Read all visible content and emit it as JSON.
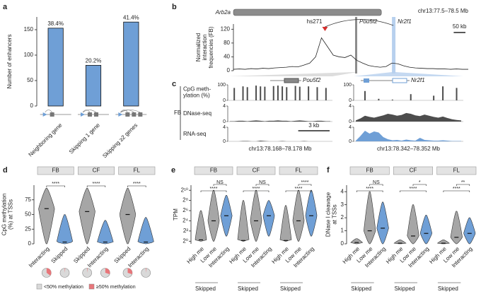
{
  "chart_data": [
    {
      "type": "bar",
      "panel": "a",
      "ylabel": [
        "Number of enhancers"
      ],
      "categories": [
        "Neighboring gene",
        "Skipping 1 gene",
        "Skipping ≥2 genes"
      ],
      "values": [
        153,
        80,
        165
      ],
      "annotations": [
        "38.4%",
        "20.2%",
        "41.4%"
      ],
      "color": "#6f9fd6",
      "ylim": [
        0,
        175
      ],
      "yticks": [
        0,
        50,
        100,
        150
      ]
    },
    {
      "type": "line",
      "panel": "b",
      "title": "chr13:77.5–78.5 Mb",
      "ylabel": [
        "Normalized",
        "interaction",
        "frequencies (FB)"
      ],
      "x": [
        77.5,
        77.525,
        77.55,
        77.575,
        77.6,
        77.625,
        77.65,
        77.675,
        77.7,
        77.725,
        77.75,
        77.775,
        77.8,
        77.825,
        77.85,
        77.875,
        77.9,
        77.925,
        77.95,
        77.975,
        78.0,
        78.025,
        78.05,
        78.075,
        78.1,
        78.125,
        78.15,
        78.175,
        78.2,
        78.225,
        78.25,
        78.275,
        78.3,
        78.325,
        78.35,
        78.375,
        78.4,
        78.425,
        78.45,
        78.475,
        78.5
      ],
      "values": [
        4,
        5,
        4,
        6,
        5,
        7,
        6,
        8,
        9,
        10,
        12,
        11,
        16,
        22,
        40,
        95,
        70,
        45,
        40,
        38,
        45,
        30,
        22,
        15,
        12,
        10,
        12,
        22,
        20,
        14,
        10,
        8,
        7,
        6,
        6,
        5,
        5,
        4,
        5,
        4,
        4
      ],
      "color": "#222222",
      "xlim": [
        77.5,
        78.5
      ],
      "ylim": [
        0,
        135
      ],
      "yticks": [
        0,
        40,
        80,
        120
      ],
      "genes": [
        {
          "name": "Arb2a",
          "start": 77.5,
          "end": 78.13,
          "color": "#8c8c8c"
        },
        {
          "name": "Pou5f2",
          "start": 78.018,
          "end": 78.024,
          "color": "#8c8c8c"
        },
        {
          "name": "Nr2f1",
          "start": 78.175,
          "end": 78.19,
          "color": "#b7d0ee"
        }
      ],
      "enhancer": {
        "name": "hs271",
        "position": 77.89
      },
      "scale_bar": {
        "label": "50 kb",
        "length": 0.05
      }
    },
    {
      "type": "tracks",
      "panel": "c",
      "group": "FB",
      "genes": [
        "Pou5f2",
        "Nr2f1"
      ],
      "regions": [
        {
          "label": "chr13:78.168–78.178 Mb",
          "xlim": [
            78.168,
            78.178
          ]
        },
        {
          "label": "chr13:78.342–78.352 Mb",
          "xlim": [
            78.342,
            78.352
          ]
        }
      ],
      "scale_bar": {
        "label": "3 kb",
        "length": 0.003
      },
      "tracks": [
        {
          "name": [
            "CpG meth-",
            "ylation (%)"
          ],
          "style": "bar",
          "ylim": [
            0,
            100
          ],
          "yticks": [
            0,
            100
          ],
          "colors": [
            "#4d4d4d",
            "#4d4d4d"
          ],
          "values": [
            [
              0,
              80,
              0,
              90,
              85,
              0,
              95,
              90,
              88,
              0,
              92,
              95,
              90,
              85,
              0,
              93,
              88,
              0,
              90,
              0,
              85,
              0,
              80,
              0
            ],
            [
              0,
              0,
              60,
              0,
              0,
              10,
              0,
              0,
              5,
              0,
              0,
              0,
              40,
              0,
              0,
              0,
              0,
              30,
              0,
              90,
              0,
              0,
              80,
              0
            ]
          ]
        },
        {
          "name": [
            "DNase-seq"
          ],
          "style": "area",
          "ylim": [
            0,
            4
          ],
          "yticks": [
            0,
            4
          ],
          "colors": [
            "#4d4d4d",
            "#4d4d4d"
          ],
          "values": [
            [
              0.1,
              0.1,
              0.2,
              0.2,
              0.1,
              0.2,
              0.3,
              0.2,
              0.1,
              0.2,
              0.2,
              0.3,
              0.2,
              0.2,
              0.1,
              0.2,
              0.3,
              0.2,
              0.1,
              0.1,
              0.2,
              0.2,
              0.1,
              0.1
            ],
            [
              0.3,
              0.8,
              1.5,
              1.2,
              1.0,
              1.3,
              1.6,
              2.0,
              1.8,
              1.5,
              1.7,
              2.2,
              2.0,
              1.6,
              1.4,
              1.8,
              1.5,
              1.2,
              1.0,
              1.3,
              0.9,
              0.6,
              0.4,
              0.3
            ]
          ]
        },
        {
          "name": [
            "RNA-seq"
          ],
          "style": "area",
          "ylim": [
            0,
            4
          ],
          "yticks": [
            0,
            4
          ],
          "colors": [
            "#4d4d4d",
            "#6f9fd6"
          ],
          "values": [
            [
              0,
              0,
              0,
              0.1,
              0.1,
              0,
              0,
              0.2,
              0.1,
              0,
              0,
              0,
              0.1,
              0,
              0,
              0,
              0,
              0.1,
              0,
              0,
              0,
              0,
              0,
              0
            ],
            [
              0.2,
              1.5,
              3.0,
              2.2,
              2.8,
              2.5,
              1.2,
              0.6,
              0.3,
              0.4,
              0.2,
              0.5,
              0.3,
              0.2,
              1.0,
              0.4,
              0.3,
              0.2,
              0.2,
              0.3,
              0.2,
              0.1,
              0.1,
              0.1
            ]
          ]
        }
      ]
    },
    {
      "type": "violin",
      "panel": "d",
      "ylabel": [
        "CpG methylation",
        "(%) at TSSs"
      ],
      "ylim": [
        0,
        100
      ],
      "yticks": [
        0,
        25,
        50,
        75
      ],
      "facets": [
        {
          "name": "FB",
          "categories": [
            "Interacting",
            "Skipped"
          ],
          "colors": [
            "#a6a6a6",
            "#6f9fd6"
          ],
          "stats": [
            [
              0,
              60,
              95
            ],
            [
              0,
              3,
              50
            ]
          ],
          "significance": [
            "****"
          ],
          "pies": [
            35,
            2
          ]
        },
        {
          "name": "CF",
          "categories": [
            "Skipped",
            "Interacting"
          ],
          "colors": [
            "#a6a6a6",
            "#6f9fd6"
          ],
          "stats": [
            [
              0,
              55,
              95
            ],
            [
              0,
              3,
              40
            ]
          ],
          "significance": [
            "****"
          ],
          "pies": [
            2,
            30
          ]
        },
        {
          "name": "FL",
          "categories": [
            "Skipped",
            "Interacting"
          ],
          "colors": [
            "#a6a6a6",
            "#6f9fd6"
          ],
          "stats": [
            [
              0,
              50,
              95
            ],
            [
              0,
              3,
              45
            ]
          ],
          "significance": [
            "****"
          ],
          "pies": [
            30,
            2
          ]
        }
      ],
      "pie_legend": [
        "<50% methylation",
        "≥50% methylation"
      ],
      "pie_colors": [
        "#d9d9d9",
        "#e8767a"
      ]
    },
    {
      "type": "violin",
      "panel": "e",
      "ylabel": [
        "TPM"
      ],
      "log_base": 2,
      "ylim": [
        0.7,
        2048
      ],
      "yticks": [
        {
          "value": 1,
          "label": "2⁰"
        },
        {
          "value": 4,
          "label": "2²"
        },
        {
          "value": 16,
          "label": "2⁴"
        },
        {
          "value": 64,
          "label": "2⁶"
        },
        {
          "value": 256,
          "label": "2⁸"
        },
        {
          "value": 1024,
          "label": "2¹⁰"
        }
      ],
      "group": "Skipped",
      "facets": [
        {
          "name": "FB",
          "categories": [
            "High me",
            "Low me",
            "Interacting"
          ],
          "colors": [
            "#a6a6a6",
            "#a6a6a6",
            "#6f9fd6"
          ],
          "stats": [
            [
              1,
              1.2,
              64
            ],
            [
              1,
              16,
              1024
            ],
            [
              2,
              32,
              512
            ]
          ],
          "significance": [
            "NS",
            "****"
          ]
        },
        {
          "name": "CF",
          "categories": [
            "High me",
            "Low me",
            "Interacting"
          ],
          "colors": [
            "#a6a6a6",
            "#a6a6a6",
            "#6f9fd6"
          ],
          "stats": [
            [
              1,
              1.1,
              256
            ],
            [
              1,
              16,
              1024
            ],
            [
              2,
              32,
              256
            ]
          ],
          "significance": [
            "NS",
            "****"
          ]
        },
        {
          "name": "FL",
          "categories": [
            "High me",
            "Low me",
            "Interacting"
          ],
          "colors": [
            "#a6a6a6",
            "#a6a6a6",
            "#6f9fd6"
          ],
          "stats": [
            [
              1,
              1.1,
              128
            ],
            [
              1,
              16,
              1024
            ],
            [
              2,
              32,
              1024
            ]
          ],
          "significance": [
            "****",
            "****"
          ]
        }
      ]
    },
    {
      "type": "violin",
      "panel": "f",
      "ylabel": [
        "DNase I cleavage",
        "at TSSs"
      ],
      "ylim": [
        0,
        4.5
      ],
      "yticks": [
        0,
        1,
        2,
        3,
        4
      ],
      "group": "Skipped",
      "facets": [
        {
          "name": "FB",
          "categories": [
            "High me",
            "Low me",
            "Interacting"
          ],
          "colors": [
            "#a6a6a6",
            "#a6a6a6",
            "#6f9fd6"
          ],
          "stats": [
            [
              0,
              0.1,
              0.4
            ],
            [
              0,
              1,
              4
            ],
            [
              0,
              1.2,
              3.2
            ]
          ],
          "significance": [
            "NS",
            "****"
          ]
        },
        {
          "name": "CF",
          "categories": [
            "High me",
            "Low me",
            "Interacting"
          ],
          "colors": [
            "#a6a6a6",
            "#a6a6a6",
            "#6f9fd6"
          ],
          "stats": [
            [
              0,
              0.05,
              0.3
            ],
            [
              0,
              0.6,
              3
            ],
            [
              0,
              0.8,
              2.2
            ]
          ],
          "significance": [
            "*",
            "****"
          ]
        },
        {
          "name": "FL",
          "categories": [
            "High me",
            "Low me",
            "Interacting"
          ],
          "colors": [
            "#a6a6a6",
            "#a6a6a6",
            "#6f9fd6"
          ],
          "stats": [
            [
              0,
              0.05,
              0.3
            ],
            [
              0,
              0.5,
              2.5
            ],
            [
              0,
              0.8,
              2.0
            ]
          ],
          "significance": [
            "**",
            "****"
          ]
        }
      ]
    }
  ]
}
